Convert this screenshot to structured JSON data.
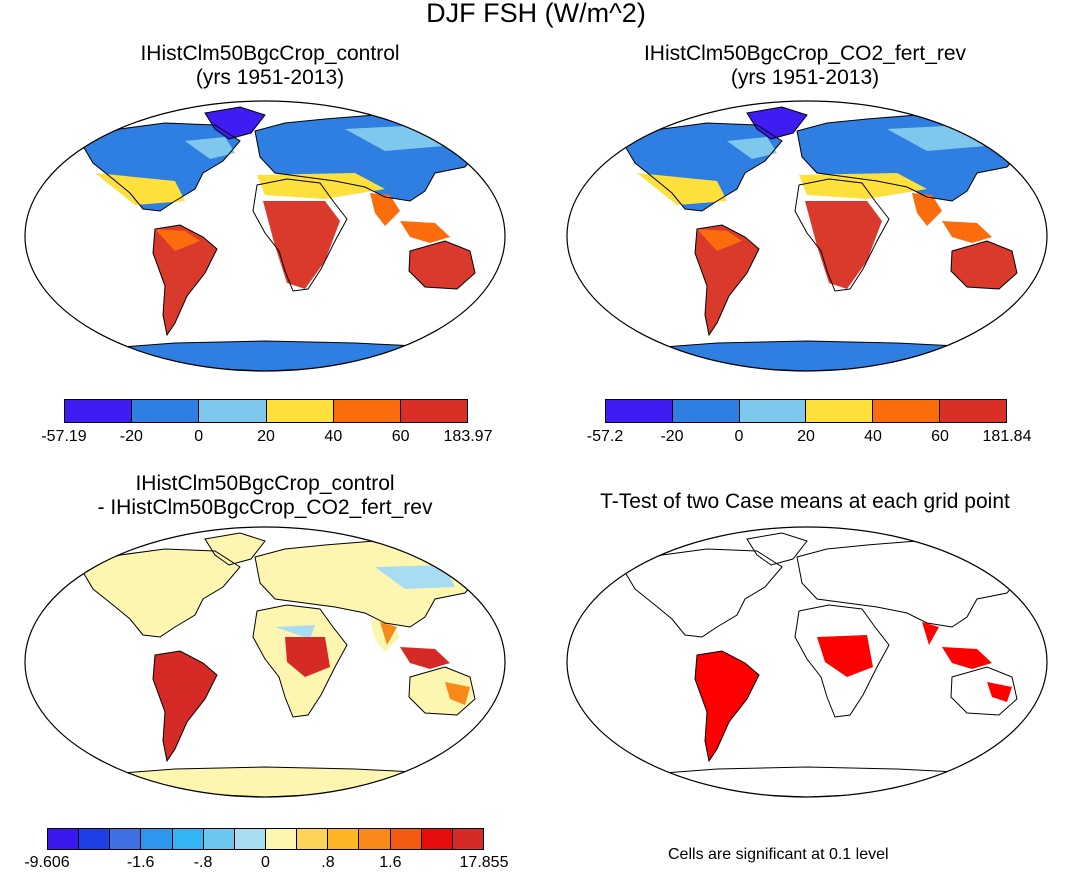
{
  "title": "DJF FSH (W/m^2)",
  "panels": [
    {
      "title1": "IHistClm50BgcCrop_control",
      "title2": "(yrs 1951-2013)"
    },
    {
      "title1": "IHistClm50BgcCrop_CO2_fert_rev",
      "title2": "(yrs 1951-2013)"
    },
    {
      "title1": "IHistClm50BgcCrop_control",
      "title2": "- IHistClm50BgcCrop_CO2_fert_rev"
    },
    {
      "title1": "T-Test of two Case means at each grid point",
      "title2": ""
    }
  ],
  "colorbars": {
    "control": {
      "colors": [
        "#3f1cf2",
        "#2f7fe3",
        "#7ec8ee",
        "#fde03b",
        "#fb6d0c",
        "#d92f26"
      ],
      "labels": [
        "-57.19",
        "-20",
        "0",
        "20",
        "40",
        "60",
        "183.97"
      ]
    },
    "co2": {
      "colors": [
        "#3f1cf2",
        "#2f7fe3",
        "#7ec8ee",
        "#fde03b",
        "#fb6d0c",
        "#d92f26"
      ],
      "labels": [
        "-57.2",
        "-20",
        "0",
        "20",
        "40",
        "60",
        "181.84"
      ]
    },
    "diff": {
      "colors": [
        "#3a18ee",
        "#1f3fe6",
        "#3f6fe0",
        "#2f96ee",
        "#33b4f5",
        "#6cc6f0",
        "#a8dcf2",
        "#fdf6b0",
        "#fdd35a",
        "#fdb526",
        "#f98a19",
        "#f45b12",
        "#e80d0d",
        "#d62a26"
      ],
      "labels": [
        "-9.606",
        "-1.6",
        "-.8",
        "0",
        ".8",
        "1.6",
        "17.855"
      ]
    }
  },
  "ttest_note": "Cells are significant at 0.1 level",
  "colors": {
    "significant": "#ff0000",
    "land_control": "#d93a2b",
    "ocean": "#ffffff"
  }
}
